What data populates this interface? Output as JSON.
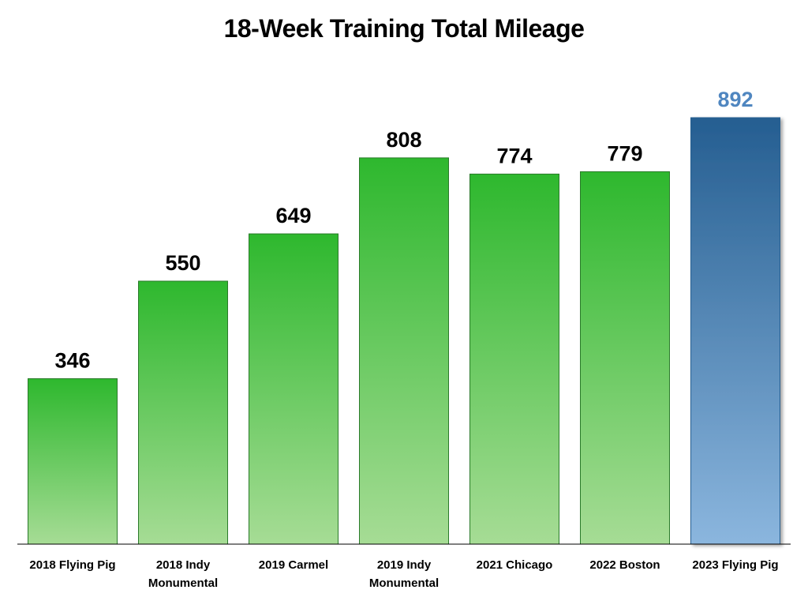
{
  "chart_data": {
    "type": "bar",
    "title": "18-Week Training Total Mileage",
    "xlabel": "",
    "ylabel": "",
    "ylim": [
      0,
      1000
    ],
    "grid": false,
    "legend": "none",
    "categories": [
      [
        "2018 Flying Pig"
      ],
      [
        "2018 Indy",
        "Monumental"
      ],
      [
        "2019 Carmel"
      ],
      [
        "2019 Indy",
        "Monumental"
      ],
      [
        "2021 Chicago"
      ],
      [
        "2022 Boston"
      ],
      [
        "2023 Flying Pig"
      ]
    ],
    "values": [
      346,
      550,
      649,
      808,
      774,
      779,
      892
    ],
    "highlight_index": 6,
    "colors": {
      "bar_top": "#2eb82e",
      "bar_bottom": "#a6dc95",
      "bar_stroke": "#2a7a2a",
      "highlight_top": "#255e91",
      "highlight_bottom": "#8bb6de",
      "highlight_label": "#4f86c0",
      "label": "#000000",
      "axis": "#000000"
    }
  }
}
